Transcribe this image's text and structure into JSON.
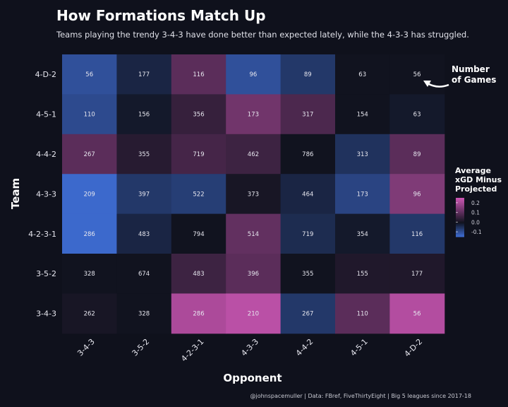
{
  "title": "How Formations Match Up",
  "subtitle": "Teams playing the trendy 3-4-3 have done better than expected lately, while the 4-3-3 has struggled.",
  "caption": "@johnspacemuller | Data: FBref, FiveThirtyEight | Big 5 leagues since 2017-18",
  "annotation": [
    "Number",
    "of Games"
  ],
  "colors": {
    "low": "#3f6fd8",
    "mid": "#11131f",
    "high": "#c955b2",
    "background": "#0f111c"
  },
  "chart_data": {
    "type": "heatmap",
    "title": "How Formations Match Up",
    "xlabel": "Opponent",
    "ylabel": "Team",
    "x_categories": [
      "3-4-3",
      "3-5-2",
      "4-2-3-1",
      "4-3-3",
      "4-4-2",
      "4-5-1",
      "4-D-2"
    ],
    "y_categories": [
      "4-D-2",
      "4-5-1",
      "4-4-2",
      "4-3-3",
      "4-2-3-1",
      "3-5-2",
      "3-4-3"
    ],
    "games": [
      [
        56,
        177,
        116,
        96,
        89,
        63,
        56
      ],
      [
        110,
        156,
        356,
        173,
        317,
        154,
        63
      ],
      [
        267,
        355,
        719,
        462,
        786,
        313,
        89
      ],
      [
        209,
        397,
        522,
        373,
        464,
        173,
        96
      ],
      [
        286,
        483,
        794,
        514,
        719,
        354,
        116
      ],
      [
        328,
        674,
        483,
        396,
        355,
        155,
        177
      ],
      [
        262,
        328,
        286,
        210,
        267,
        110,
        56
      ]
    ],
    "values_estimated": [
      [
        -0.1,
        -0.03,
        0.1,
        -0.1,
        -0.06,
        0.0,
        0.0
      ],
      [
        -0.09,
        -0.01,
        0.05,
        0.13,
        0.08,
        0.0,
        -0.01
      ],
      [
        0.1,
        0.03,
        0.07,
        0.06,
        0.0,
        -0.05,
        0.1
      ],
      [
        -0.14,
        -0.06,
        -0.07,
        0.01,
        -0.03,
        -0.08,
        0.15
      ],
      [
        -0.14,
        -0.03,
        0.0,
        0.11,
        -0.04,
        -0.01,
        -0.06
      ],
      [
        0.0,
        0.0,
        0.06,
        0.1,
        0.0,
        0.02,
        0.02
      ],
      [
        0.01,
        0.0,
        0.21,
        0.23,
        -0.06,
        0.1,
        0.22
      ]
    ],
    "legend": {
      "title": [
        "Average",
        "xGD Minus",
        "Projected"
      ],
      "ticks": [
        0.2,
        0.1,
        0.0,
        -0.1
      ],
      "tick_labels": [
        "0.2",
        "0.1",
        "0.0",
        "-0.1"
      ],
      "range": [
        -0.15,
        0.25
      ],
      "placement": "right"
    }
  }
}
